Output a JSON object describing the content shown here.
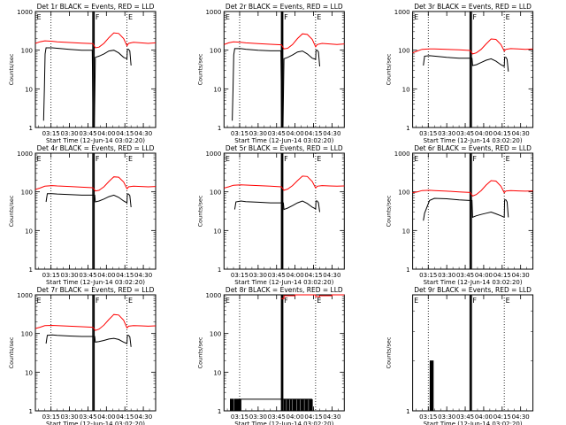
{
  "layout": {
    "columns": 3,
    "rows": 3
  },
  "colors": {
    "events": "#000000",
    "lld": "#ff0000",
    "axis": "#000000",
    "background": "#ffffff"
  },
  "ylabel": "Counts/sec",
  "xlabel": "Start Time (12-Jun-14 03:02:20)",
  "x_ticks": [
    "03:15",
    "03:30",
    "03:45",
    "04:00",
    "04:15",
    "04:30"
  ],
  "x_tick_minutes": [
    195,
    210,
    225,
    240,
    255,
    270
  ],
  "y_tick_labels": [
    "1",
    "10",
    "100",
    "1000"
  ],
  "attenuator_labels": [
    "E",
    "F",
    "E"
  ],
  "chart_data": [
    {
      "type": "line",
      "title": "Det 1r BLACK = Events, RED = LLD",
      "y_scale": "log",
      "ylim": [
        1,
        1000
      ],
      "xlim": [
        182.3,
        280
      ],
      "markers": {
        "dotted": [
          195,
          256.7
        ],
        "solid": [
          229,
          230
        ]
      },
      "series": [
        {
          "name": "Events",
          "color": "#000000",
          "x": [
            189,
            189.6,
            190.2,
            191,
            196,
            200,
            210,
            220,
            228.5,
            229.2,
            230.2,
            231,
            234,
            238,
            242,
            246,
            250,
            254,
            256.7,
            257,
            258,
            259,
            260
          ],
          "y": [
            1.5,
            10,
            80,
            115,
            115,
            112,
            105,
            100,
            100,
            1,
            1,
            65,
            70,
            80,
            95,
            100,
            85,
            65,
            60,
            105,
            105,
            95,
            40
          ]
        },
        {
          "name": "LLD",
          "color": "#ff0000",
          "x": [
            182.3,
            186,
            190,
            196,
            200,
            210,
            220,
            229,
            231,
            234,
            238,
            242,
            246,
            250,
            254,
            256.7,
            258,
            262,
            268,
            274,
            280
          ],
          "y": [
            150,
            165,
            175,
            170,
            165,
            158,
            152,
            148,
            115,
            120,
            150,
            210,
            280,
            270,
            200,
            130,
            150,
            160,
            155,
            150,
            155
          ]
        }
      ]
    },
    {
      "type": "line",
      "title": "Det 2r BLACK = Events, RED = LLD",
      "y_scale": "log",
      "ylim": [
        1,
        1000
      ],
      "xlim": [
        182.3,
        280
      ],
      "markers": {
        "dotted": [
          195,
          256.7
        ],
        "solid": [
          229,
          230
        ]
      },
      "series": [
        {
          "name": "Events",
          "color": "#000000",
          "x": [
            189,
            189.6,
            190.2,
            191,
            196,
            200,
            210,
            220,
            228.5,
            229.2,
            230.2,
            231,
            234,
            238,
            242,
            246,
            250,
            254,
            256.7,
            257,
            258,
            259,
            260
          ],
          "y": [
            1.5,
            10,
            75,
            110,
            110,
            106,
            100,
            96,
            96,
            1,
            1,
            60,
            65,
            75,
            90,
            95,
            80,
            62,
            58,
            100,
            100,
            90,
            38
          ]
        },
        {
          "name": "LLD",
          "color": "#ff0000",
          "x": [
            182.3,
            186,
            190,
            196,
            200,
            210,
            220,
            229,
            231,
            234,
            238,
            242,
            246,
            250,
            254,
            256.7,
            258,
            262,
            268,
            274,
            280
          ],
          "y": [
            140,
            155,
            165,
            160,
            155,
            148,
            142,
            138,
            108,
            112,
            140,
            200,
            265,
            255,
            190,
            122,
            140,
            150,
            145,
            140,
            145
          ]
        }
      ]
    },
    {
      "type": "line",
      "title": "Det 3r BLACK = Events, RED = LLD",
      "y_scale": "log",
      "ylim": [
        1,
        1000
      ],
      "xlim": [
        182.3,
        280
      ],
      "markers": {
        "dotted": [
          195,
          256.7
        ],
        "solid": [
          229,
          230
        ]
      },
      "series": [
        {
          "name": "Events",
          "color": "#000000",
          "x": [
            191,
            192,
            196,
            200,
            210,
            220,
            228.5,
            230.5,
            231,
            234,
            238,
            242,
            246,
            250,
            254,
            256.7,
            257,
            258,
            259,
            260
          ],
          "y": [
            40,
            70,
            72,
            70,
            65,
            62,
            62,
            62,
            40,
            42,
            48,
            55,
            60,
            52,
            42,
            38,
            65,
            65,
            58,
            28
          ]
        },
        {
          "name": "LLD",
          "color": "#ff0000",
          "x": [
            182.3,
            186,
            190,
            196,
            200,
            210,
            220,
            229,
            231,
            234,
            238,
            242,
            246,
            250,
            254,
            256.7,
            258,
            262,
            268,
            274,
            280
          ],
          "y": [
            85,
            95,
            105,
            108,
            108,
            105,
            102,
            98,
            80,
            85,
            105,
            145,
            195,
            190,
            140,
            95,
            105,
            110,
            108,
            105,
            108
          ]
        }
      ]
    },
    {
      "type": "line",
      "title": "Det 4r BLACK = Events, RED = LLD",
      "y_scale": "log",
      "ylim": [
        1,
        1000
      ],
      "xlim": [
        182.3,
        280
      ],
      "markers": {
        "dotted": [
          195,
          256.7
        ],
        "solid": [
          229,
          230
        ]
      },
      "series": [
        {
          "name": "Events",
          "color": "#000000",
          "x": [
            191,
            192,
            196,
            200,
            210,
            220,
            228.5,
            230.5,
            231,
            234,
            238,
            242,
            246,
            250,
            254,
            256.7,
            257,
            258,
            259,
            260
          ],
          "y": [
            55,
            90,
            90,
            88,
            85,
            82,
            82,
            82,
            55,
            58,
            65,
            75,
            82,
            72,
            58,
            52,
            88,
            88,
            80,
            40
          ]
        },
        {
          "name": "LLD",
          "color": "#ff0000",
          "x": [
            182.3,
            186,
            190,
            196,
            200,
            210,
            220,
            229,
            231,
            234,
            238,
            242,
            246,
            250,
            254,
            256.7,
            258,
            262,
            268,
            274,
            280
          ],
          "y": [
            115,
            125,
            140,
            145,
            142,
            138,
            132,
            128,
            105,
            110,
            135,
            185,
            245,
            240,
            180,
            120,
            135,
            140,
            138,
            135,
            138
          ]
        }
      ]
    },
    {
      "type": "line",
      "title": "Det 5r BLACK = Events, RED = LLD",
      "y_scale": "log",
      "ylim": [
        1,
        1000
      ],
      "xlim": [
        182.3,
        280
      ],
      "markers": {
        "dotted": [
          195,
          256.7
        ],
        "solid": [
          229,
          230
        ]
      },
      "series": [
        {
          "name": "Events",
          "color": "#000000",
          "x": [
            191,
            192,
            196,
            200,
            210,
            220,
            228.5,
            230.5,
            231,
            234,
            238,
            242,
            246,
            250,
            254,
            256.7,
            257,
            258,
            259,
            260
          ],
          "y": [
            35,
            55,
            58,
            56,
            54,
            52,
            52,
            52,
            35,
            38,
            44,
            52,
            58,
            50,
            40,
            36,
            58,
            58,
            52,
            30
          ]
        },
        {
          "name": "LLD",
          "color": "#ff0000",
          "x": [
            182.3,
            186,
            190,
            196,
            200,
            210,
            220,
            229,
            231,
            234,
            238,
            242,
            246,
            250,
            254,
            256.7,
            258,
            262,
            268,
            274,
            280
          ],
          "y": [
            125,
            135,
            148,
            152,
            150,
            145,
            140,
            135,
            110,
            118,
            145,
            195,
            255,
            250,
            185,
            125,
            140,
            145,
            142,
            140,
            142
          ]
        }
      ]
    },
    {
      "type": "line",
      "title": "Det 6r BLACK = Events, RED = LLD",
      "y_scale": "log",
      "ylim": [
        1,
        1000
      ],
      "xlim": [
        182.3,
        280
      ],
      "markers": {
        "dotted": [
          195,
          256.7
        ],
        "solid": [
          229,
          230
        ]
      },
      "series": [
        {
          "name": "Events",
          "color": "#000000",
          "x": [
            191,
            192,
            196,
            200,
            210,
            220,
            228.5,
            230.5,
            231,
            234,
            238,
            242,
            246,
            250,
            254,
            256.7,
            257,
            258,
            259,
            260
          ],
          "y": [
            18,
            28,
            60,
            68,
            66,
            62,
            60,
            60,
            22,
            24,
            26,
            28,
            30,
            27,
            24,
            22,
            62,
            62,
            55,
            22
          ]
        },
        {
          "name": "LLD",
          "color": "#ff0000",
          "x": [
            182.3,
            186,
            190,
            196,
            200,
            210,
            220,
            229,
            231,
            234,
            238,
            242,
            246,
            250,
            254,
            256.7,
            258,
            262,
            268,
            274,
            280
          ],
          "y": [
            95,
            100,
            108,
            110,
            108,
            104,
            100,
            96,
            78,
            85,
            108,
            150,
            195,
            190,
            140,
            95,
            105,
            108,
            106,
            104,
            106
          ]
        }
      ]
    },
    {
      "type": "line",
      "title": "Det 7r BLACK = Events, RED = LLD",
      "y_scale": "log",
      "ylim": [
        1,
        1000
      ],
      "xlim": [
        182.3,
        280
      ],
      "markers": {
        "dotted": [
          195,
          256.7
        ],
        "solid": [
          229,
          230
        ]
      },
      "series": [
        {
          "name": "Events",
          "color": "#000000",
          "x": [
            191,
            192,
            196,
            200,
            210,
            220,
            228.5,
            230.5,
            231,
            234,
            238,
            242,
            246,
            250,
            254,
            256.7,
            257,
            258,
            259,
            260
          ],
          "y": [
            55,
            90,
            92,
            90,
            86,
            84,
            84,
            84,
            60,
            62,
            66,
            72,
            75,
            70,
            60,
            55,
            90,
            90,
            82,
            45
          ]
        },
        {
          "name": "LLD",
          "color": "#ff0000",
          "x": [
            182.3,
            186,
            190,
            196,
            200,
            210,
            220,
            229,
            231,
            234,
            238,
            242,
            246,
            250,
            254,
            256.7,
            258,
            262,
            268,
            274,
            280
          ],
          "y": [
            135,
            145,
            160,
            162,
            160,
            155,
            150,
            145,
            120,
            130,
            165,
            230,
            310,
            300,
            220,
            140,
            155,
            160,
            158,
            155,
            158
          ]
        }
      ]
    },
    {
      "type": "line",
      "title": "Det 8r BLACK = Events, RED = LLD",
      "y_scale": "log",
      "ylim": [
        1,
        1000
      ],
      "xlim": [
        182.3,
        280
      ],
      "markers": {
        "dotted": [
          195,
          256.7
        ],
        "solid": [
          229,
          230
        ]
      },
      "series": [
        {
          "name": "Events",
          "color": "#000000",
          "x": [
            187,
            187.5,
            188,
            188.5,
            189,
            189.5,
            190,
            190.5,
            191,
            191.5,
            192,
            192.5,
            193,
            193.5,
            194,
            194.5,
            195,
            195.5,
            196,
            231,
            231.5,
            232,
            232.5,
            233,
            233.5,
            234,
            234.5,
            235,
            235.5,
            236,
            236.5,
            237,
            237.5,
            238,
            238.5,
            239,
            239.5,
            240,
            240.5,
            241,
            241.5,
            242,
            242.5,
            243,
            243.5,
            244,
            244.5,
            245,
            245.5,
            246,
            246.5,
            247,
            247.5,
            248,
            248.5,
            249,
            249.5,
            250,
            250.5,
            251,
            251.5,
            252,
            252.5,
            253,
            253.5,
            254
          ],
          "y": [
            1,
            2,
            1,
            2,
            1,
            2,
            1,
            1,
            2,
            1,
            2,
            1,
            2,
            1,
            2,
            1,
            2,
            1,
            2,
            1,
            2,
            1,
            2,
            2,
            1,
            2,
            1,
            2,
            2,
            1,
            2,
            1,
            2,
            2,
            1,
            2,
            1,
            2,
            1,
            2,
            2,
            1,
            2,
            1,
            2,
            2,
            1,
            2,
            1,
            2,
            1,
            2,
            2,
            1,
            2,
            1,
            2,
            1,
            2,
            2,
            1,
            2,
            1,
            2,
            1,
            2
          ]
        },
        {
          "name": "LLD",
          "color": "#ff0000",
          "x": [
            229,
            231,
            240,
            250,
            256.7,
            260,
            270,
            280
          ],
          "y": [
            800,
            950,
            1000,
            1000,
            900,
            950,
            1000,
            1000
          ]
        }
      ]
    },
    {
      "type": "line",
      "title": "Det 9r BLACK = Events, RED = LLD",
      "y_scale": "log",
      "ylim": [
        1,
        5
      ],
      "xlim": [
        182.3,
        280
      ],
      "markers": {
        "dotted": [
          195,
          256.7
        ],
        "solid": [
          229,
          230
        ]
      },
      "series": [
        {
          "name": "Events",
          "color": "#000000",
          "x": [
            196,
            196.5,
            197,
            197.5,
            198,
            198.5,
            199
          ],
          "y": [
            1,
            2,
            1,
            2,
            1,
            2,
            1
          ]
        },
        {
          "name": "LLD",
          "color": "#ff0000",
          "x": [],
          "y": []
        }
      ]
    }
  ]
}
